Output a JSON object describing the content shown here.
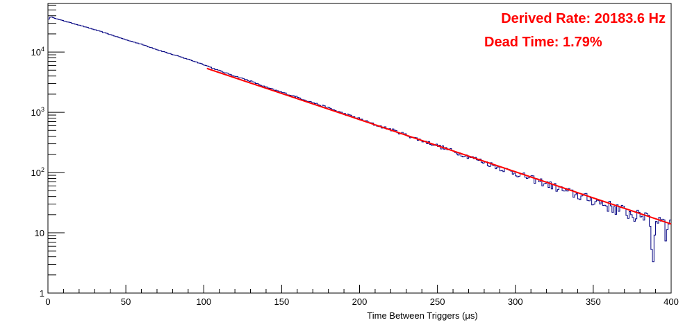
{
  "chart_data": {
    "type": "line",
    "title": "",
    "xlabel": "Time Between Triggers (μs)",
    "ylabel": "",
    "xlim": [
      0,
      400
    ],
    "ylim": [
      1,
      64000
    ],
    "yscale": "log",
    "grid": false,
    "x_ticks": [
      0,
      50,
      100,
      150,
      200,
      250,
      300,
      350,
      400
    ],
    "x_tick_labels": [
      "0",
      "50",
      "100",
      "150",
      "200",
      "250",
      "300",
      "350",
      "400"
    ],
    "y_ticks": [
      1,
      10,
      100,
      1000,
      10000
    ],
    "y_tick_labels": [
      "1",
      "10",
      "10^2",
      "10^3",
      "10^4"
    ],
    "annotations": [
      "Derived Rate: 20183.6 Hz",
      "Dead Time: 1.79%"
    ],
    "series": [
      {
        "role": "histogram",
        "color": "#000080",
        "x": [
          0,
          1,
          2,
          3,
          4,
          5,
          10,
          20,
          30,
          40,
          50,
          60,
          70,
          80,
          90,
          100,
          110,
          120,
          130,
          140,
          150,
          160,
          170,
          180,
          190,
          200,
          210,
          220,
          230,
          240,
          250,
          260,
          270,
          280,
          290,
          300,
          310,
          320,
          330,
          340,
          350,
          360,
          370,
          380,
          385,
          387,
          388,
          390,
          395,
          397,
          398,
          400
        ],
        "y": [
          34000,
          37000,
          38000,
          38000,
          37000,
          36000,
          33000,
          28000,
          23500,
          19500,
          16000,
          13500,
          11000,
          9100,
          7600,
          6200,
          4900,
          4000,
          3300,
          2600,
          2150,
          1780,
          1450,
          1180,
          950,
          780,
          620,
          520,
          420,
          340,
          280,
          225,
          185,
          150,
          120,
          98,
          80,
          66,
          52,
          42,
          35,
          28,
          23,
          18,
          22,
          14,
          2,
          15,
          20,
          9,
          14,
          14
        ]
      },
      {
        "role": "fit",
        "color": "#ff0000",
        "x": [
          102,
          400
        ],
        "y": [
          5350,
          14
        ]
      }
    ]
  }
}
